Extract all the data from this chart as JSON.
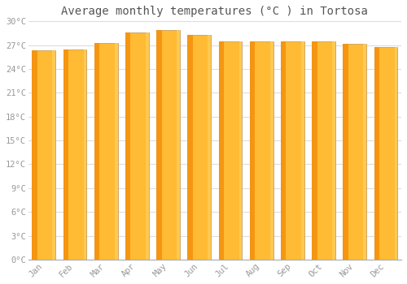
{
  "title": "Average monthly temperatures (°C ) in Tortosa",
  "months": [
    "Jan",
    "Feb",
    "Mar",
    "Apr",
    "May",
    "Jun",
    "Jul",
    "Aug",
    "Sep",
    "Oct",
    "Nov",
    "Dec"
  ],
  "values": [
    26.3,
    26.5,
    27.3,
    28.6,
    28.9,
    28.3,
    27.5,
    27.5,
    27.5,
    27.5,
    27.2,
    26.8
  ],
  "bar_color_main": "#FFBB33",
  "bar_color_left": "#F5900A",
  "bar_color_right": "#FFD060",
  "bar_edge_color": "#C8A060",
  "background_color": "#FFFFFF",
  "plot_bg_color": "#FFFFFF",
  "grid_color": "#DDDDDD",
  "text_color": "#999999",
  "title_color": "#555555",
  "ylim": [
    0,
    30
  ],
  "yticks": [
    0,
    3,
    6,
    9,
    12,
    15,
    18,
    21,
    24,
    27,
    30
  ],
  "ytick_labels": [
    "0°C",
    "3°C",
    "6°C",
    "9°C",
    "12°C",
    "15°C",
    "18°C",
    "21°C",
    "24°C",
    "27°C",
    "30°C"
  ],
  "title_fontsize": 10,
  "tick_fontsize": 7.5,
  "font_family": "monospace",
  "bar_width": 0.75,
  "figsize": [
    5.0,
    3.5
  ],
  "dpi": 100
}
